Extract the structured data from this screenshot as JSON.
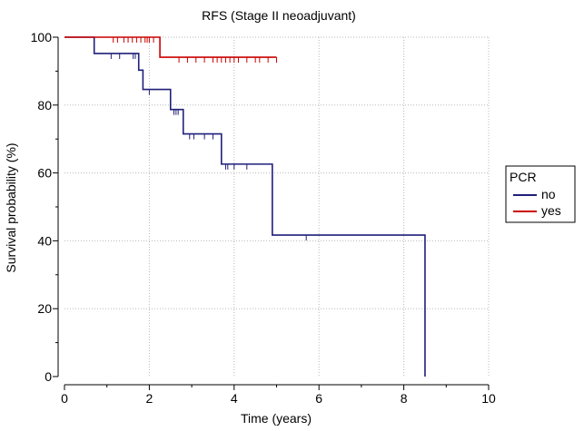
{
  "chart_data": {
    "type": "line",
    "subtype": "kaplan-meier step",
    "title": "RFS (Stage II neoadjuvant)",
    "xlabel": "Time (years)",
    "ylabel": "Survival probability (%)",
    "xlim": [
      0,
      10
    ],
    "ylim": [
      0,
      100
    ],
    "x_ticks": [
      0,
      2,
      4,
      6,
      8,
      10
    ],
    "y_ticks": [
      0,
      20,
      40,
      60,
      80,
      100
    ],
    "grid": true,
    "grid_style": "dotted",
    "legend": {
      "title": "PCR",
      "placement": "right"
    },
    "series": [
      {
        "name": "no",
        "color": "#1f1f7a",
        "steps": [
          [
            0,
            100
          ],
          [
            0.7,
            95.2
          ],
          [
            1.75,
            90.3
          ],
          [
            1.85,
            84.6
          ],
          [
            2.5,
            78.7
          ],
          [
            2.8,
            71.5
          ],
          [
            3.7,
            62.6
          ],
          [
            4.9,
            41.7
          ],
          [
            8.5,
            0
          ]
        ],
        "censored": [
          1.1,
          1.3,
          1.62,
          1.67,
          2.0,
          2.58,
          2.63,
          2.68,
          2.95,
          3.05,
          3.3,
          3.5,
          3.8,
          3.85,
          4.0,
          4.3,
          5.7
        ]
      },
      {
        "name": "yes",
        "color": "#cc0000",
        "steps": [
          [
            0,
            100
          ],
          [
            2.25,
            94.1
          ]
        ],
        "censored": [
          1.15,
          1.25,
          1.4,
          1.5,
          1.6,
          1.7,
          1.8,
          1.9,
          1.95,
          2.0,
          2.1,
          2.7,
          2.9,
          3.1,
          3.3,
          3.5,
          3.6,
          3.7,
          3.8,
          3.9,
          4.0,
          4.1,
          4.3,
          4.5,
          4.6,
          4.8,
          5.0
        ],
        "end_x": 5.0
      }
    ]
  }
}
